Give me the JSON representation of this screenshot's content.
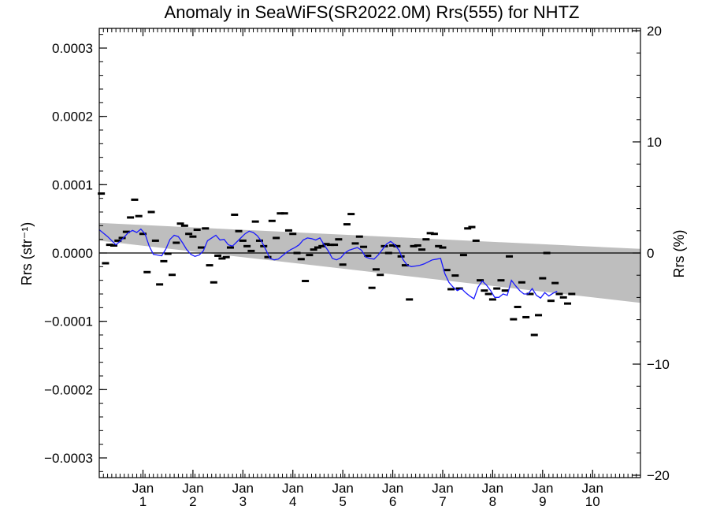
{
  "chart_data": {
    "type": "line",
    "title": "Anomaly in SeaWiFS(SR2022.0M) Rrs(555) for NHTZ",
    "ylabel_left": "Rrs (str⁻¹)",
    "ylabel_right": "Rrs (%)",
    "xlabel": "",
    "xlim": [
      0,
      130
    ],
    "ylim_left": [
      -0.00033,
      0.00033
    ],
    "ylim_right": [
      -20.3,
      20.3
    ],
    "yticks_left": [
      "0.0003",
      "0.0002",
      "0.0001",
      "0.0000",
      "−0.0001",
      "−0.0002",
      "−0.0003"
    ],
    "yticks_left_values": [
      0.0003,
      0.0002,
      0.0001,
      0.0,
      -0.0001,
      -0.0002,
      -0.0003
    ],
    "yticks_right": [
      "20",
      "10",
      "0",
      "−10",
      "−20"
    ],
    "yticks_right_values": [
      20,
      10,
      0,
      -10,
      -20
    ],
    "xticks": [
      {
        "label": "Jan",
        "sub": "1",
        "x": 10.5
      },
      {
        "label": "Jan",
        "sub": "2",
        "x": 22.5
      },
      {
        "label": "Jan",
        "sub": "3",
        "x": 34.5
      },
      {
        "label": "Jan",
        "sub": "4",
        "x": 46.5
      },
      {
        "label": "Jan",
        "sub": "5",
        "x": 58.5
      },
      {
        "label": "Jan",
        "sub": "6",
        "x": 70.5
      },
      {
        "label": "Jan",
        "sub": "7",
        "x": 82.5
      },
      {
        "label": "Jan",
        "sub": "8",
        "x": 94.5
      },
      {
        "label": "Jan",
        "sub": "9",
        "x": 106.5
      },
      {
        "label": "Jan",
        "sub": "10",
        "x": 118.5
      }
    ],
    "band": {
      "upper": [
        [
          0,
          4.4e-05
        ],
        [
          130,
          6e-06
        ]
      ],
      "lower": [
        [
          0,
          1.8e-05
        ],
        [
          130,
          -7.3e-05
        ]
      ]
    },
    "zero_line": 0,
    "colors": {
      "line": "#1a1aff",
      "band": "#bebebe",
      "points": "#000000"
    },
    "points": [
      [
        0.5,
        8.7e-05
      ],
      [
        1.5,
        -1.5e-05
      ],
      [
        2.5,
        1.2e-05
      ],
      [
        3.5,
        1.1e-05
      ],
      [
        4.5,
        1.8e-05
      ],
      [
        5.5,
        2.2e-05
      ],
      [
        6.5,
        3.1e-05
      ],
      [
        7.5,
        5.2e-05
      ],
      [
        8.5,
        7.8e-05
      ],
      [
        9.5,
        5.4e-05
      ],
      [
        10.5,
        2.8e-05
      ],
      [
        11.5,
        -2.8e-05
      ],
      [
        12.5,
        6e-05
      ],
      [
        13.5,
        1.8e-05
      ],
      [
        14.5,
        -4.6e-05
      ],
      [
        15.5,
        -1.2e-05
      ],
      [
        16.5,
        -1e-06
      ],
      [
        17.5,
        -3.2e-05
      ],
      [
        18.5,
        1.5e-05
      ],
      [
        19.5,
        4.3e-05
      ],
      [
        20.5,
        4e-05
      ],
      [
        21.5,
        2.8e-05
      ],
      [
        22.5,
        2.4e-05
      ],
      [
        23.5,
        3.4e-05
      ],
      [
        24.5,
        8e-06
      ],
      [
        25.5,
        3.6e-05
      ],
      [
        26.5,
        -1.8e-05
      ],
      [
        27.5,
        -4.3e-05
      ],
      [
        28.5,
        -4e-06
      ],
      [
        29.5,
        -8e-06
      ],
      [
        30.5,
        -6e-06
      ],
      [
        31.5,
        8e-06
      ],
      [
        32.5,
        5.6e-05
      ],
      [
        33.5,
        3.2e-05
      ],
      [
        34.5,
        1.8e-05
      ],
      [
        35.5,
        1e-05
      ],
      [
        36.5,
        3e-06
      ],
      [
        37.5,
        4.6e-05
      ],
      [
        38.5,
        1.8e-05
      ],
      [
        39.5,
        1e-05
      ],
      [
        40.5,
        -6e-06
      ],
      [
        41.5,
        4.7e-05
      ],
      [
        42.5,
        2.2e-05
      ],
      [
        43.5,
        5.8e-05
      ],
      [
        44.5,
        5.8e-05
      ],
      [
        45.5,
        3.3e-05
      ],
      [
        46.5,
        2.8e-05
      ],
      [
        47.5,
        0.0
      ],
      [
        48.5,
        -9e-06
      ],
      [
        49.5,
        -4.1e-05
      ],
      [
        50.5,
        -3e-06
      ],
      [
        51.5,
        5e-06
      ],
      [
        52.5,
        8e-06
      ],
      [
        53.5,
        1e-05
      ],
      [
        54.5,
        1.3e-05
      ],
      [
        55.5,
        1.2e-05
      ],
      [
        56.5,
        1.2e-05
      ],
      [
        57.5,
        2e-05
      ],
      [
        58.5,
        -1.7e-05
      ],
      [
        59.5,
        4.2e-05
      ],
      [
        60.5,
        5.7e-05
      ],
      [
        61.5,
        1.4e-05
      ],
      [
        62.5,
        2.4e-05
      ],
      [
        63.5,
        9e-06
      ],
      [
        64.5,
        -4e-06
      ],
      [
        65.5,
        -5.1e-05
      ],
      [
        66.5,
        -2.4e-05
      ],
      [
        67.5,
        -3.2e-05
      ],
      [
        68.5,
        1e-05
      ],
      [
        69.5,
        0.0
      ],
      [
        70.5,
        1.1e-05
      ],
      [
        71.5,
        1e-05
      ],
      [
        72.5,
        -5e-06
      ],
      [
        73.5,
        -1.8e-05
      ],
      [
        74.5,
        -6.8e-05
      ],
      [
        75.5,
        1e-05
      ],
      [
        76.5,
        1.1e-05
      ],
      [
        77.5,
        5e-06
      ],
      [
        78.5,
        2e-05
      ],
      [
        79.5,
        2.9e-05
      ],
      [
        80.5,
        2.8e-05
      ],
      [
        81.5,
        1e-05
      ],
      [
        82.5,
        8e-06
      ],
      [
        83.5,
        -2.5e-05
      ],
      [
        84.5,
        -5.3e-05
      ],
      [
        85.5,
        -3.3e-05
      ],
      [
        86.5,
        -5.2e-05
      ],
      [
        87.5,
        -3e-06
      ],
      [
        88.5,
        3.6e-05
      ],
      [
        89.5,
        3.8e-05
      ],
      [
        90.5,
        1.8e-05
      ],
      [
        91.5,
        -4e-05
      ],
      [
        92.5,
        -5.5e-05
      ],
      [
        93.5,
        -6e-05
      ],
      [
        94.5,
        -6.8e-05
      ],
      [
        95.5,
        -5.2e-05
      ],
      [
        96.5,
        -4e-05
      ],
      [
        97.5,
        -5.5e-05
      ],
      [
        98.5,
        -5e-06
      ],
      [
        99.5,
        -9.7e-05
      ],
      [
        100.5,
        -7.9e-05
      ],
      [
        101.5,
        -4.3e-05
      ],
      [
        102.5,
        -9.4e-05
      ],
      [
        103.5,
        -6e-05
      ],
      [
        104.5,
        -0.00012
      ],
      [
        105.5,
        -9.1e-05
      ],
      [
        106.5,
        -3.7e-05
      ],
      [
        107.5,
        0.0
      ],
      [
        108.5,
        -7e-05
      ],
      [
        109.5,
        -4.4e-05
      ],
      [
        110.5,
        -6e-05
      ],
      [
        111.5,
        -6.5e-05
      ],
      [
        112.5,
        -7.4e-05
      ],
      [
        113.5,
        -6e-05
      ]
    ],
    "line": [
      [
        0,
        3.4e-05
      ],
      [
        2,
        2.4e-05
      ],
      [
        4,
        1.2e-05
      ],
      [
        5,
        1.7e-05
      ],
      [
        7,
        3e-05
      ],
      [
        8,
        3.3e-05
      ],
      [
        9,
        3e-05
      ],
      [
        10,
        3.5e-05
      ],
      [
        11,
        2.8e-05
      ],
      [
        12,
        1e-05
      ],
      [
        13,
        -2e-06
      ],
      [
        14,
        -3e-06
      ],
      [
        15,
        -4e-06
      ],
      [
        16,
        6e-06
      ],
      [
        17,
        2e-05
      ],
      [
        18,
        2.6e-05
      ],
      [
        19,
        2.4e-05
      ],
      [
        20,
        1.5e-05
      ],
      [
        21,
        5e-06
      ],
      [
        22,
        -2e-06
      ],
      [
        23,
        -5e-06
      ],
      [
        24,
        -3e-06
      ],
      [
        25,
        3e-06
      ],
      [
        26,
        1.8e-05
      ],
      [
        27,
        2.2e-05
      ],
      [
        28,
        2.6e-05
      ],
      [
        29,
        1.9e-05
      ],
      [
        30,
        2e-05
      ],
      [
        31,
        1.2e-05
      ],
      [
        32,
        1e-05
      ],
      [
        33,
        1.6e-05
      ],
      [
        34,
        2.2e-05
      ],
      [
        35,
        2.8e-05
      ],
      [
        36,
        3.2e-05
      ],
      [
        37,
        3e-05
      ],
      [
        38,
        2.5e-05
      ],
      [
        39,
        1.7e-05
      ],
      [
        40,
        5e-06
      ],
      [
        41,
        -8e-06
      ],
      [
        42,
        -1e-05
      ],
      [
        43,
        -9e-06
      ],
      [
        44,
        -4e-06
      ],
      [
        45,
        1e-06
      ],
      [
        46,
        5e-06
      ],
      [
        47,
        8e-06
      ],
      [
        48,
        1.2e-05
      ],
      [
        49,
        1.9e-05
      ],
      [
        50,
        2.2e-05
      ],
      [
        51,
        2.1e-05
      ],
      [
        52,
        1.9e-05
      ],
      [
        53,
        2.2e-05
      ],
      [
        54,
        1.2e-05
      ],
      [
        55,
        3e-06
      ],
      [
        56,
        -8e-06
      ],
      [
        57,
        -1e-05
      ],
      [
        58,
        -7e-06
      ],
      [
        59,
        0.0
      ],
      [
        60,
        4e-06
      ],
      [
        61,
        6e-06
      ],
      [
        62,
        8e-06
      ],
      [
        63,
        4e-06
      ],
      [
        64,
        -6e-06
      ],
      [
        65,
        -8e-06
      ],
      [
        66,
        -9e-06
      ],
      [
        67,
        -3e-06
      ],
      [
        68,
        5e-06
      ],
      [
        69,
        1.3e-05
      ],
      [
        70,
        1.7e-05
      ],
      [
        71,
        1.2e-05
      ],
      [
        72,
        4e-06
      ],
      [
        73,
        -1e-05
      ],
      [
        74,
        -1.8e-05
      ],
      [
        75,
        -2e-05
      ],
      [
        76,
        -1.9e-05
      ],
      [
        77,
        -1.8e-05
      ],
      [
        78,
        -1.6e-05
      ],
      [
        79,
        -1.3e-05
      ],
      [
        80,
        -1e-05
      ],
      [
        81,
        -9e-06
      ],
      [
        82,
        -8e-06
      ],
      [
        83,
        -3e-05
      ],
      [
        84,
        -4.3e-05
      ],
      [
        85,
        -5e-05
      ],
      [
        86,
        -5.5e-05
      ],
      [
        87,
        -5.2e-05
      ],
      [
        88,
        -5.8e-05
      ],
      [
        89,
        -6.3e-05
      ],
      [
        90,
        -6.7e-05
      ],
      [
        91,
        -5e-05
      ],
      [
        92,
        -4.1e-05
      ],
      [
        93,
        -4.7e-05
      ],
      [
        94,
        -5.5e-05
      ],
      [
        95,
        -6.5e-05
      ],
      [
        96,
        -6.5e-05
      ],
      [
        97,
        -6e-05
      ],
      [
        98,
        -6.2e-05
      ],
      [
        99,
        -4e-05
      ],
      [
        100,
        -4.8e-05
      ],
      [
        101,
        -5.5e-05
      ],
      [
        102,
        -6e-05
      ],
      [
        103,
        -6e-05
      ],
      [
        104,
        -5.2e-05
      ],
      [
        105,
        -6.2e-05
      ],
      [
        106,
        -6.6e-05
      ],
      [
        107,
        -5.8e-05
      ],
      [
        108,
        -6.3e-05
      ],
      [
        109,
        -5.9e-05
      ],
      [
        110,
        -5.6e-05
      ]
    ]
  }
}
